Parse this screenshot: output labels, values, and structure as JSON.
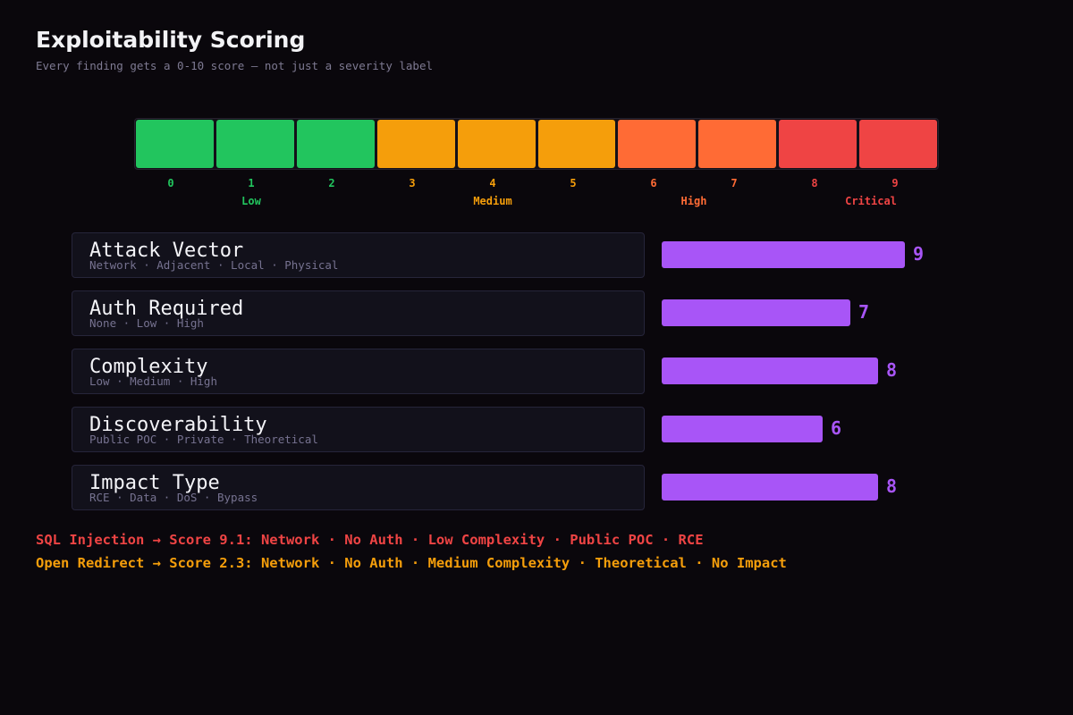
{
  "title": "Exploitability Scoring",
  "subtitle": "Every finding gets a 0-10 score — not just a severity label",
  "scale": {
    "cells": [
      {
        "num": "0",
        "color": "#22c55e"
      },
      {
        "num": "1",
        "color": "#22c55e"
      },
      {
        "num": "2",
        "color": "#22c55e"
      },
      {
        "num": "3",
        "color": "#f59e0b"
      },
      {
        "num": "4",
        "color": "#f59e0b"
      },
      {
        "num": "5",
        "color": "#f59e0b"
      },
      {
        "num": "6",
        "color": "#ff6b35"
      },
      {
        "num": "7",
        "color": "#ff6b35"
      },
      {
        "num": "8",
        "color": "#ef4444"
      },
      {
        "num": "9",
        "color": "#ef4444"
      }
    ],
    "bands": [
      {
        "label": "Low",
        "color": "#22c55e",
        "at": 1
      },
      {
        "label": "Medium",
        "color": "#f59e0b",
        "at": 4
      },
      {
        "label": "High",
        "color": "#ff6b35",
        "at": 6.5
      },
      {
        "label": "Critical",
        "color": "#ef4444",
        "at": 8.7
      }
    ]
  },
  "factors": [
    {
      "name": "Attack Vector",
      "options": "Network · Adjacent · Local · Physical",
      "score": 9
    },
    {
      "name": "Auth Required",
      "options": "None · Low · High",
      "score": 7
    },
    {
      "name": "Complexity",
      "options": "Low · Medium · High",
      "score": 8
    },
    {
      "name": "Discoverability",
      "options": "Public POC · Private · Theoretical",
      "score": 6
    },
    {
      "name": "Impact Type",
      "options": "RCE · Data · DoS · Bypass",
      "score": 8
    }
  ],
  "examples": [
    {
      "text": "SQL Injection → Score 9.1: Network · No Auth · Low Complexity · Public POC · RCE",
      "color": "#ef4444"
    },
    {
      "text": "Open Redirect → Score 2.3: Network · No Auth · Medium Complexity · Theoretical · No Impact",
      "color": "#f59e0b"
    }
  ],
  "colors": {
    "accent": "#a855f7",
    "background": "#0a070c"
  }
}
